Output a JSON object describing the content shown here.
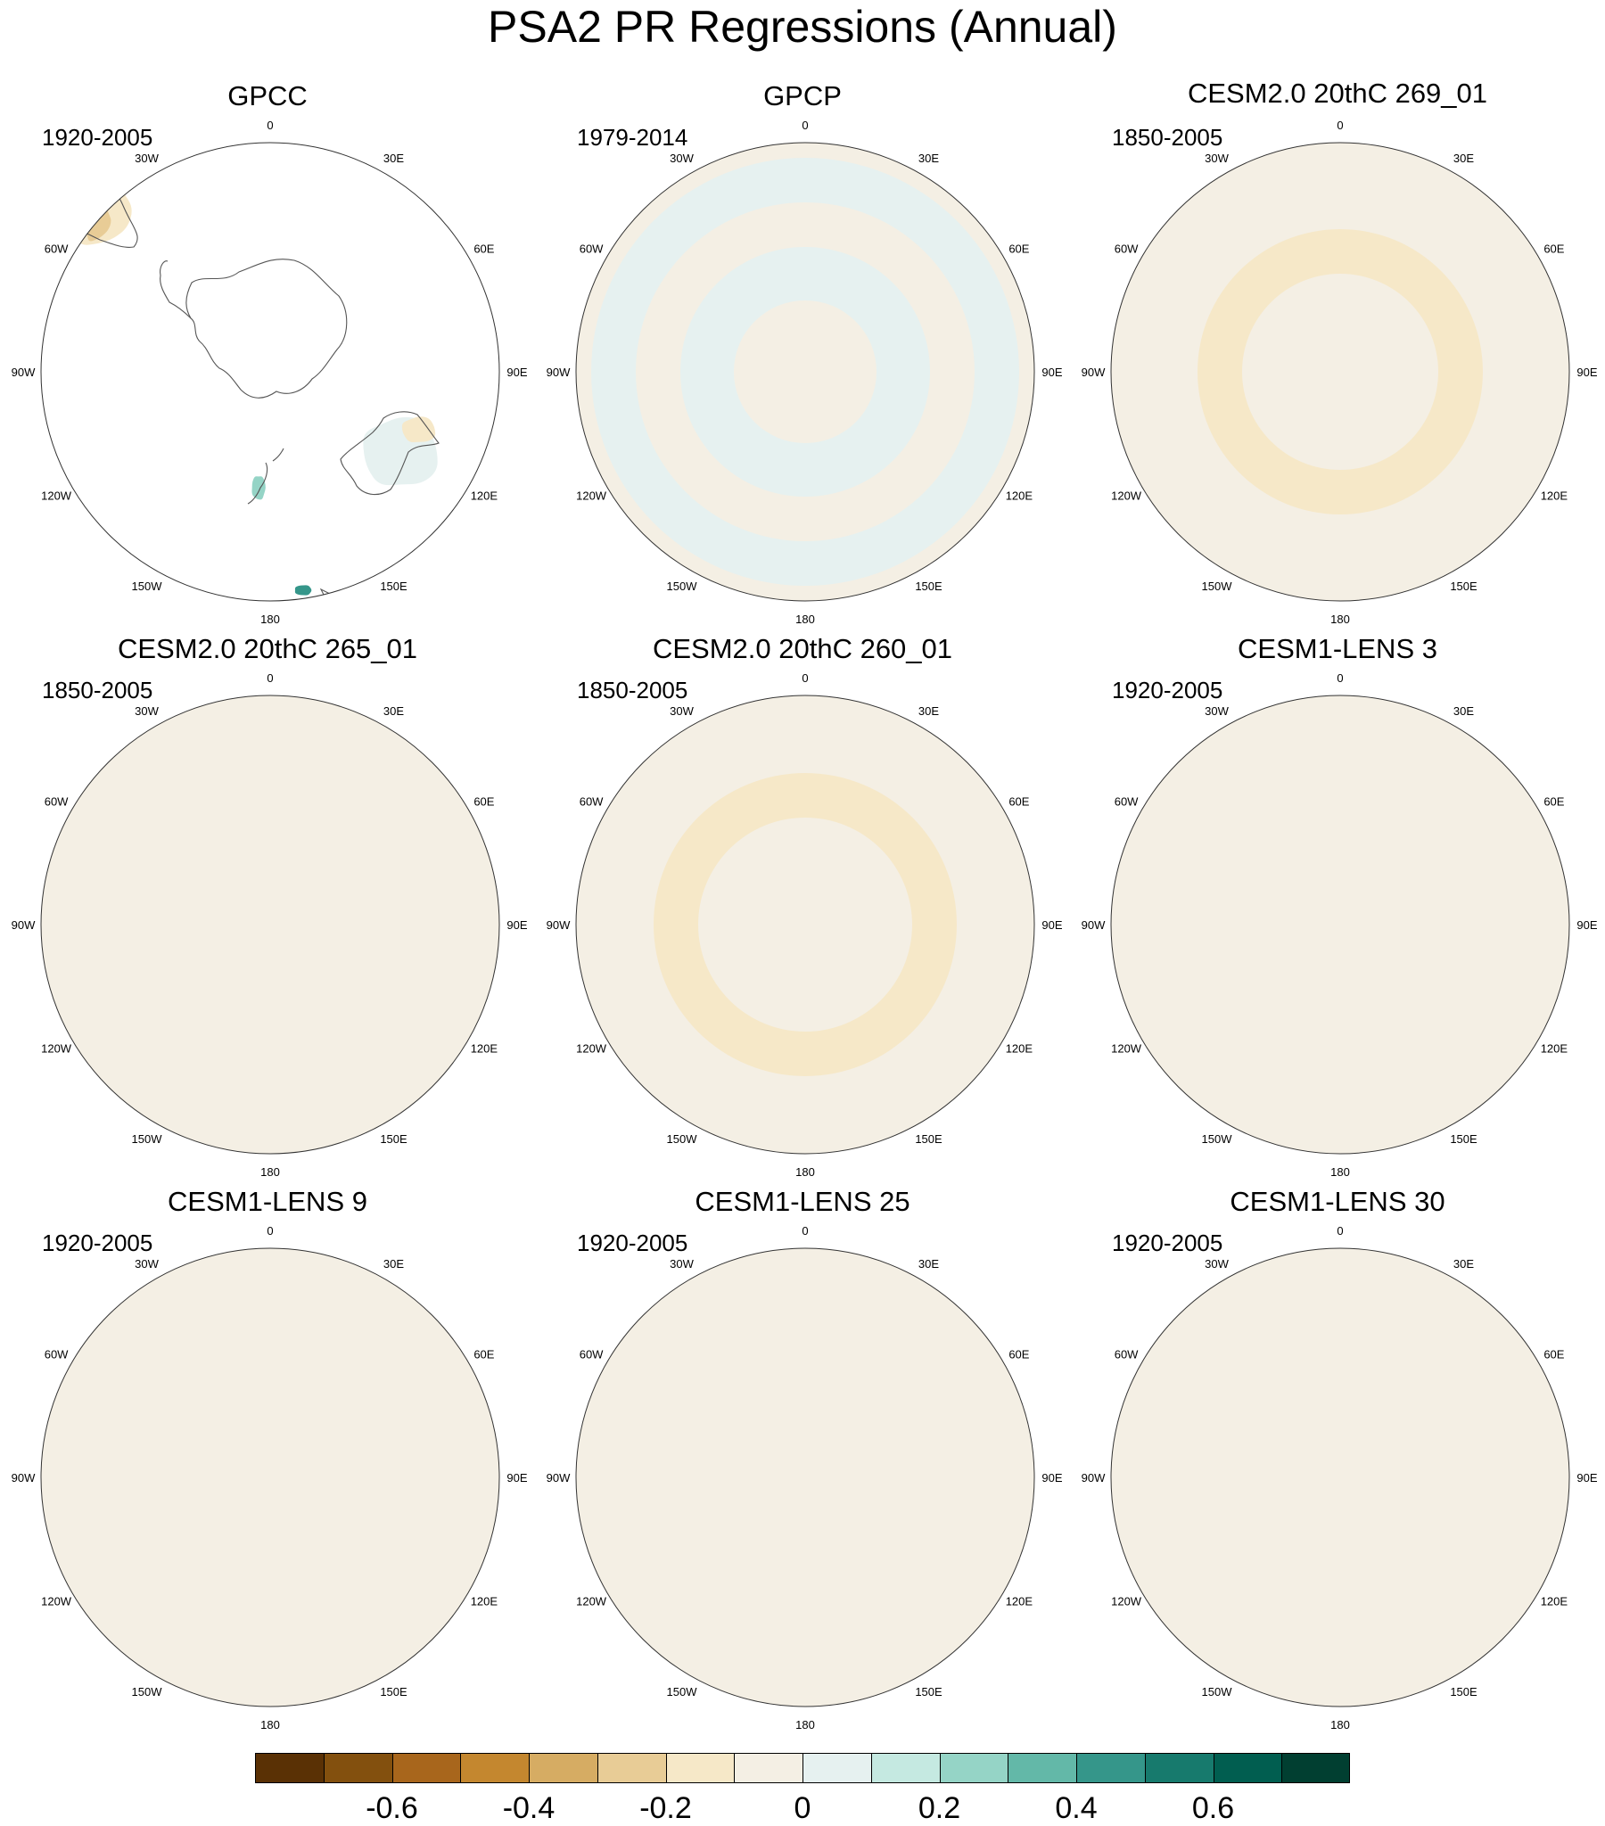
{
  "title": "PSA2 PR Regressions (Annual)",
  "panels": [
    {
      "title": "GPCC",
      "period": "1920-2005",
      "variant": "obs_gpcc"
    },
    {
      "title": "GPCP",
      "period": "1979-2014",
      "variant": "obs_gpcp"
    },
    {
      "title": "CESM2.0 20thC 269_01",
      "period": "1850-2005",
      "variant": "m1"
    },
    {
      "title": "CESM2.0 20thC 265_01",
      "period": "1850-2005",
      "variant": "m2"
    },
    {
      "title": "CESM2.0 20thC 260_01",
      "period": "1850-2005",
      "variant": "m3"
    },
    {
      "title": "CESM1-LENS 3",
      "period": "1920-2005",
      "variant": "m4"
    },
    {
      "title": "CESM1-LENS 9",
      "period": "1920-2005",
      "variant": "m5"
    },
    {
      "title": "CESM1-LENS 25",
      "period": "1920-2005",
      "variant": "m6"
    },
    {
      "title": "CESM1-LENS 30",
      "period": "1920-2005",
      "variant": "m7"
    }
  ],
  "longitude_labels": [
    "0",
    "30E",
    "60E",
    "90E",
    "120E",
    "150E",
    "180",
    "150W",
    "120W",
    "90W",
    "60W",
    "30W"
  ],
  "colorbar": {
    "colors": [
      "#5a3105",
      "#83500e",
      "#a8661c",
      "#c4872f",
      "#d6ac63",
      "#e8cc96",
      "#f6e8c8",
      "#f4efe4",
      "#e6f1f0",
      "#c5e9e1",
      "#95d4c6",
      "#63b8a8",
      "#35968a",
      "#177a6d",
      "#015e50",
      "#013f31"
    ],
    "tick_labels": [
      "-0.6",
      "-0.4",
      "-0.2",
      "0",
      "0.2",
      "0.4",
      "0.6"
    ],
    "tick_values": [
      -0.6,
      -0.4,
      -0.2,
      0,
      0.2,
      0.4,
      0.6
    ]
  }
}
